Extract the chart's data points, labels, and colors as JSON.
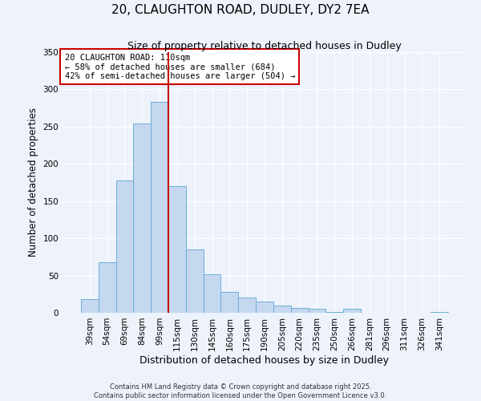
{
  "title": "20, CLAUGHTON ROAD, DUDLEY, DY2 7EA",
  "subtitle": "Size of property relative to detached houses in Dudley",
  "xlabel": "Distribution of detached houses by size in Dudley",
  "ylabel": "Number of detached properties",
  "bar_labels": [
    "39sqm",
    "54sqm",
    "69sqm",
    "84sqm",
    "99sqm",
    "115sqm",
    "130sqm",
    "145sqm",
    "160sqm",
    "175sqm",
    "190sqm",
    "205sqm",
    "220sqm",
    "235sqm",
    "250sqm",
    "266sqm",
    "281sqm",
    "296sqm",
    "311sqm",
    "326sqm",
    "341sqm"
  ],
  "bar_values": [
    18,
    68,
    178,
    254,
    283,
    170,
    85,
    52,
    28,
    21,
    15,
    10,
    7,
    5,
    1,
    5,
    0,
    0,
    0,
    0,
    1
  ],
  "bar_color": "#c5d8f0",
  "bar_edge_color": "#6baed6",
  "background_color": "#edf2fb",
  "grid_color": "#ffffff",
  "vline_x": 4.5,
  "vline_color": "#cc0000",
  "ylim": [
    0,
    350
  ],
  "yticks": [
    0,
    50,
    100,
    150,
    200,
    250,
    300,
    350
  ],
  "annotation_title": "20 CLAUGHTON ROAD: 110sqm",
  "annotation_line1": "← 58% of detached houses are smaller (684)",
  "annotation_line2": "42% of semi-detached houses are larger (504) →",
  "annotation_box_color": "#ffffff",
  "annotation_box_edge": "#cc0000",
  "footer1": "Contains HM Land Registry data © Crown copyright and database right 2025.",
  "footer2": "Contains public sector information licensed under the Open Government Licence v3.0."
}
